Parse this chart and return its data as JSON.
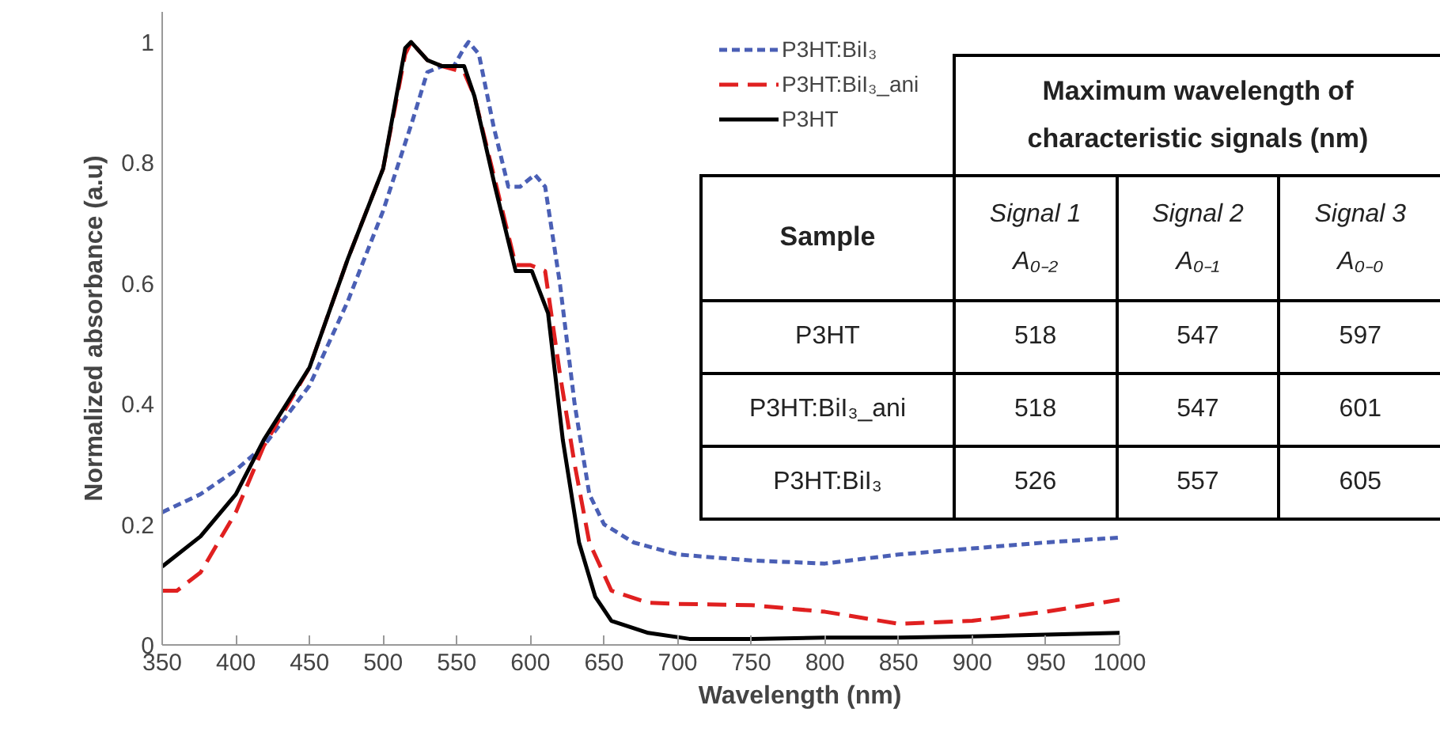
{
  "chart_data": {
    "type": "line",
    "xlabel": "Wavelength (nm)",
    "ylabel": "Normalized absorbance (a.u)",
    "xlim": [
      350,
      1000
    ],
    "xticks": [
      350,
      400,
      450,
      500,
      550,
      600,
      650,
      700,
      750,
      800,
      850,
      900,
      950,
      1000
    ],
    "ylim": [
      0,
      1.05
    ],
    "yticks": [
      0,
      0.2,
      0.4,
      0.6,
      0.8,
      1
    ],
    "grid": false,
    "legend": "top",
    "marker": "none",
    "series": [
      {
        "name": "P3HT:BiI₃",
        "color": "#4a5fb5",
        "line_style": "dotted",
        "x": [
          350,
          376,
          400,
          419,
          450,
          476,
          500,
          520,
          530,
          540,
          548,
          555,
          558,
          565,
          575,
          585,
          593,
          603,
          610,
          620,
          630,
          640,
          650,
          670,
          700,
          750,
          800,
          850,
          900,
          950,
          1000
        ],
        "values": [
          0.22,
          0.25,
          0.29,
          0.33,
          0.43,
          0.57,
          0.72,
          0.87,
          0.95,
          0.96,
          0.96,
          0.99,
          1.0,
          0.98,
          0.86,
          0.76,
          0.76,
          0.78,
          0.76,
          0.6,
          0.4,
          0.25,
          0.2,
          0.17,
          0.15,
          0.14,
          0.135,
          0.15,
          0.16,
          0.17,
          0.178
        ]
      },
      {
        "name": "P3HT:BiI₃_ani",
        "color": "#e02020",
        "line_style": "dashed",
        "x": [
          350,
          360,
          376,
          400,
          419,
          450,
          476,
          500,
          515,
          519,
          530,
          540,
          555,
          562,
          576,
          590,
          600,
          610,
          620,
          630,
          640,
          655,
          680,
          700,
          750,
          800,
          850,
          900,
          950,
          1000
        ],
        "values": [
          0.09,
          0.09,
          0.12,
          0.22,
          0.33,
          0.46,
          0.64,
          0.79,
          0.98,
          1.0,
          0.97,
          0.96,
          0.95,
          0.91,
          0.77,
          0.63,
          0.63,
          0.62,
          0.45,
          0.3,
          0.17,
          0.09,
          0.07,
          0.068,
          0.066,
          0.055,
          0.035,
          0.04,
          0.055,
          0.075
        ]
      },
      {
        "name": "P3HT",
        "color": "#000000",
        "line_style": "solid",
        "x": [
          350,
          376,
          400,
          419,
          450,
          476,
          500,
          515,
          519,
          530,
          540,
          555,
          562,
          576,
          590,
          601,
          612,
          622,
          633,
          644,
          655,
          680,
          708,
          750,
          800,
          850,
          900,
          950,
          1000
        ],
        "values": [
          0.13,
          0.18,
          0.25,
          0.34,
          0.46,
          0.64,
          0.79,
          0.99,
          1.0,
          0.97,
          0.96,
          0.96,
          0.91,
          0.76,
          0.62,
          0.62,
          0.55,
          0.34,
          0.17,
          0.08,
          0.04,
          0.02,
          0.01,
          0.01,
          0.012,
          0.012,
          0.014,
          0.017,
          0.02
        ]
      }
    ],
    "annotations": [
      "Maximum wavelength of characteristic signals (nm)",
      "Sample",
      "Signal 1",
      "Signal 2",
      "Signal 3",
      "A₀₋₂",
      "A₀₋₁",
      "A₀₋₀",
      "P3HT",
      "518",
      "547",
      "597",
      "P3HT:BiI₃_ani",
      "518",
      "547",
      "601",
      "P3HT:BiI₃",
      "526",
      "557",
      "605"
    ]
  }
}
